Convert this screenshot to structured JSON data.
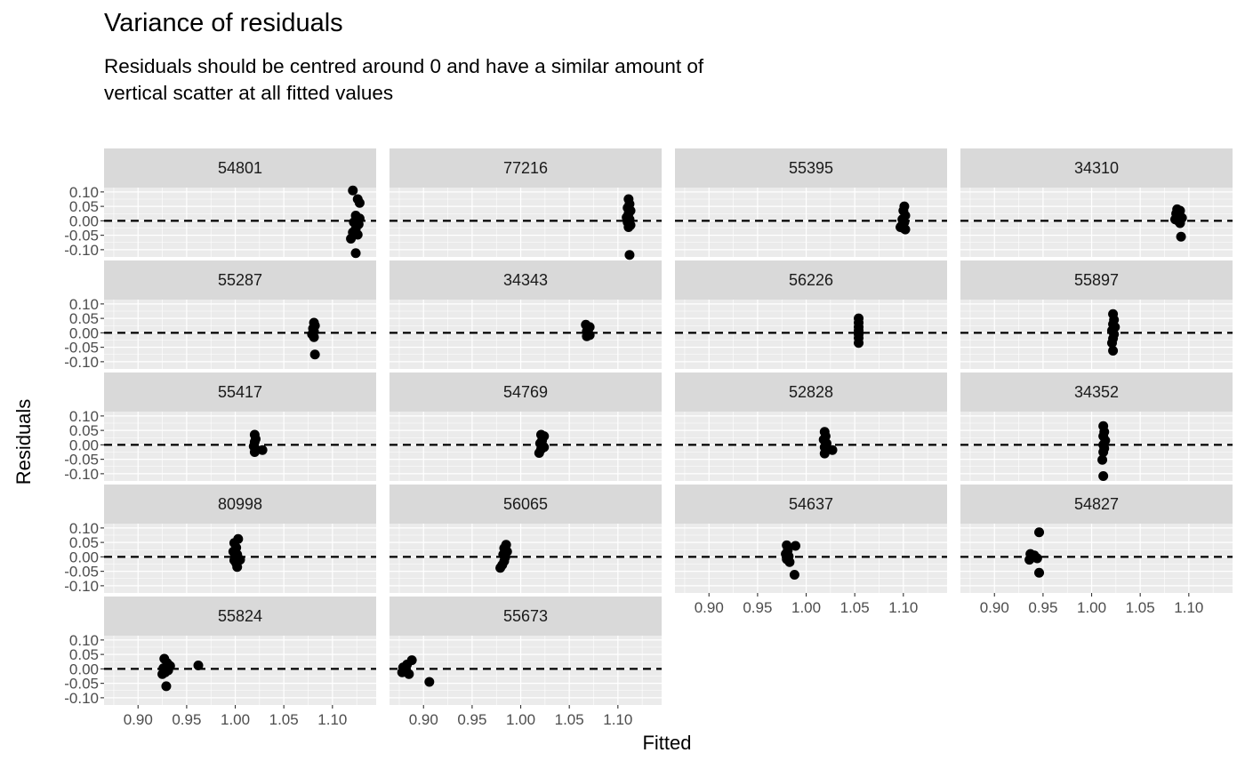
{
  "title": "Variance of residuals",
  "subtitle": "Residuals should be centred around 0 and have a similar amount of vertical scatter at all fitted values",
  "chart_data": {
    "type": "scatter",
    "facet_layout": "wrap",
    "ncol": 4,
    "xlabel": "Fitted",
    "ylabel": "Residuals",
    "xlim": [
      0.865,
      1.145
    ],
    "ylim": [
      -0.125,
      0.115
    ],
    "xticks": [
      0.9,
      0.95,
      1.0,
      1.05,
      1.1
    ],
    "xtick_labels": [
      "0.90",
      "0.95",
      "1.00",
      "1.05",
      "1.10"
    ],
    "yticks": [
      -0.1,
      -0.05,
      0.0,
      0.05,
      0.1
    ],
    "ytick_labels": [
      "-0.10",
      "-0.05",
      "0.00",
      "0.05",
      "0.10"
    ],
    "reference_line": {
      "y": 0,
      "style": "dashed"
    },
    "grid": true,
    "panels": [
      {
        "label": "54801",
        "points": [
          [
            1.121,
            0.105
          ],
          [
            1.126,
            0.075
          ],
          [
            1.128,
            0.062
          ],
          [
            1.124,
            0.018
          ],
          [
            1.122,
            -0.005
          ],
          [
            1.127,
            -0.012
          ],
          [
            1.124,
            -0.028
          ],
          [
            1.121,
            -0.04
          ],
          [
            1.126,
            -0.048
          ],
          [
            1.119,
            -0.062
          ],
          [
            1.124,
            -0.112
          ],
          [
            1.128,
            0.008
          ]
        ]
      },
      {
        "label": "77216",
        "points": [
          [
            1.111,
            0.075
          ],
          [
            1.112,
            0.058
          ],
          [
            1.11,
            0.045
          ],
          [
            1.113,
            0.035
          ],
          [
            1.111,
            0.025
          ],
          [
            1.109,
            0.012
          ],
          [
            1.112,
            0.005
          ],
          [
            1.11,
            -0.005
          ],
          [
            1.113,
            -0.015
          ],
          [
            1.111,
            -0.022
          ],
          [
            1.112,
            -0.118
          ]
        ]
      },
      {
        "label": "55395",
        "points": [
          [
            1.101,
            0.05
          ],
          [
            1.1,
            0.035
          ],
          [
            1.102,
            0.018
          ],
          [
            1.099,
            0.005
          ],
          [
            1.101,
            -0.005
          ],
          [
            1.098,
            -0.018
          ],
          [
            1.1,
            -0.025
          ],
          [
            1.102,
            -0.03
          ],
          [
            1.097,
            -0.022
          ]
        ]
      },
      {
        "label": "34310",
        "points": [
          [
            1.088,
            0.04
          ],
          [
            1.091,
            0.035
          ],
          [
            1.087,
            0.025
          ],
          [
            1.09,
            0.018
          ],
          [
            1.093,
            0.01
          ],
          [
            1.086,
            0.005
          ],
          [
            1.089,
            0.0
          ],
          [
            1.091,
            -0.008
          ],
          [
            1.092,
            -0.055
          ]
        ]
      },
      {
        "label": "55287",
        "points": [
          [
            1.081,
            0.035
          ],
          [
            1.082,
            0.025
          ],
          [
            1.08,
            0.015
          ],
          [
            1.081,
            0.005
          ],
          [
            1.079,
            -0.005
          ],
          [
            1.081,
            -0.015
          ],
          [
            1.082,
            -0.075
          ]
        ]
      },
      {
        "label": "34343",
        "points": [
          [
            1.067,
            0.028
          ],
          [
            1.071,
            0.02
          ],
          [
            1.069,
            0.015
          ],
          [
            1.068,
            0.005
          ],
          [
            1.07,
            -0.003
          ],
          [
            1.068,
            -0.012
          ],
          [
            1.071,
            -0.008
          ]
        ]
      },
      {
        "label": "56226",
        "points": [
          [
            1.054,
            0.05
          ],
          [
            1.054,
            0.035
          ],
          [
            1.054,
            0.02
          ],
          [
            1.054,
            0.008
          ],
          [
            1.054,
            -0.005
          ],
          [
            1.054,
            -0.018
          ],
          [
            1.054,
            -0.035
          ]
        ]
      },
      {
        "label": "55897",
        "points": [
          [
            1.022,
            0.065
          ],
          [
            1.023,
            0.045
          ],
          [
            1.022,
            0.03
          ],
          [
            1.024,
            0.02
          ],
          [
            1.021,
            0.008
          ],
          [
            1.023,
            -0.005
          ],
          [
            1.022,
            -0.02
          ],
          [
            1.021,
            -0.035
          ],
          [
            1.022,
            -0.062
          ]
        ]
      },
      {
        "label": "55417",
        "points": [
          [
            1.02,
            0.035
          ],
          [
            1.021,
            0.02
          ],
          [
            1.02,
            0.01
          ],
          [
            1.019,
            -0.005
          ],
          [
            1.021,
            -0.015
          ],
          [
            1.02,
            -0.025
          ],
          [
            1.028,
            -0.018
          ]
        ]
      },
      {
        "label": "54769",
        "points": [
          [
            1.021,
            0.035
          ],
          [
            1.024,
            0.03
          ],
          [
            1.022,
            0.015
          ],
          [
            1.02,
            0.005
          ],
          [
            1.023,
            -0.005
          ],
          [
            1.021,
            -0.015
          ],
          [
            1.019,
            -0.028
          ],
          [
            1.024,
            -0.008
          ]
        ]
      },
      {
        "label": "52828",
        "points": [
          [
            1.019,
            0.045
          ],
          [
            1.02,
            0.03
          ],
          [
            1.018,
            0.018
          ],
          [
            1.021,
            0.005
          ],
          [
            1.019,
            -0.008
          ],
          [
            1.02,
            -0.02
          ],
          [
            1.019,
            -0.03
          ],
          [
            1.027,
            -0.018
          ]
        ]
      },
      {
        "label": "34352",
        "points": [
          [
            1.012,
            0.065
          ],
          [
            1.013,
            0.045
          ],
          [
            1.012,
            0.03
          ],
          [
            1.014,
            0.015
          ],
          [
            1.012,
            0.0
          ],
          [
            1.013,
            -0.012
          ],
          [
            1.012,
            -0.025
          ],
          [
            1.011,
            -0.052
          ],
          [
            1.012,
            -0.108
          ]
        ]
      },
      {
        "label": "80998",
        "points": [
          [
            1.003,
            0.062
          ],
          [
            0.999,
            0.048
          ],
          [
            1.001,
            0.032
          ],
          [
            0.998,
            0.018
          ],
          [
            1.002,
            0.008
          ],
          [
            1.0,
            0.0
          ],
          [
            1.003,
            -0.005
          ],
          [
            0.999,
            -0.012
          ],
          [
            1.001,
            -0.022
          ],
          [
            1.002,
            -0.035
          ],
          [
            1.005,
            -0.01
          ]
        ]
      },
      {
        "label": "56065",
        "points": [
          [
            0.985,
            0.042
          ],
          [
            0.983,
            0.03
          ],
          [
            0.986,
            0.018
          ],
          [
            0.982,
            0.008
          ],
          [
            0.984,
            -0.002
          ],
          [
            0.983,
            -0.015
          ],
          [
            0.981,
            -0.028
          ],
          [
            0.979,
            -0.038
          ]
        ]
      },
      {
        "label": "54637",
        "points": [
          [
            0.98,
            0.04
          ],
          [
            0.989,
            0.038
          ],
          [
            0.981,
            0.022
          ],
          [
            0.979,
            0.01
          ],
          [
            0.982,
            0.002
          ],
          [
            0.98,
            -0.008
          ],
          [
            0.983,
            -0.018
          ],
          [
            0.988,
            -0.062
          ]
        ]
      },
      {
        "label": "54827",
        "points": [
          [
            0.946,
            0.085
          ],
          [
            0.937,
            0.01
          ],
          [
            0.941,
            0.005
          ],
          [
            0.944,
            -0.005
          ],
          [
            0.936,
            -0.01
          ],
          [
            0.946,
            -0.055
          ]
        ]
      },
      {
        "label": "55824",
        "points": [
          [
            0.927,
            0.035
          ],
          [
            0.93,
            0.02
          ],
          [
            0.933,
            0.01
          ],
          [
            0.926,
            0.002
          ],
          [
            0.931,
            -0.005
          ],
          [
            0.928,
            -0.012
          ],
          [
            0.925,
            -0.018
          ],
          [
            0.929,
            -0.06
          ],
          [
            0.962,
            0.012
          ]
        ]
      },
      {
        "label": "55673",
        "points": [
          [
            0.883,
            0.015
          ],
          [
            0.879,
            0.005
          ],
          [
            0.882,
            -0.005
          ],
          [
            0.878,
            -0.012
          ],
          [
            0.885,
            -0.018
          ],
          [
            0.888,
            0.03
          ],
          [
            0.906,
            -0.045
          ]
        ]
      }
    ]
  }
}
